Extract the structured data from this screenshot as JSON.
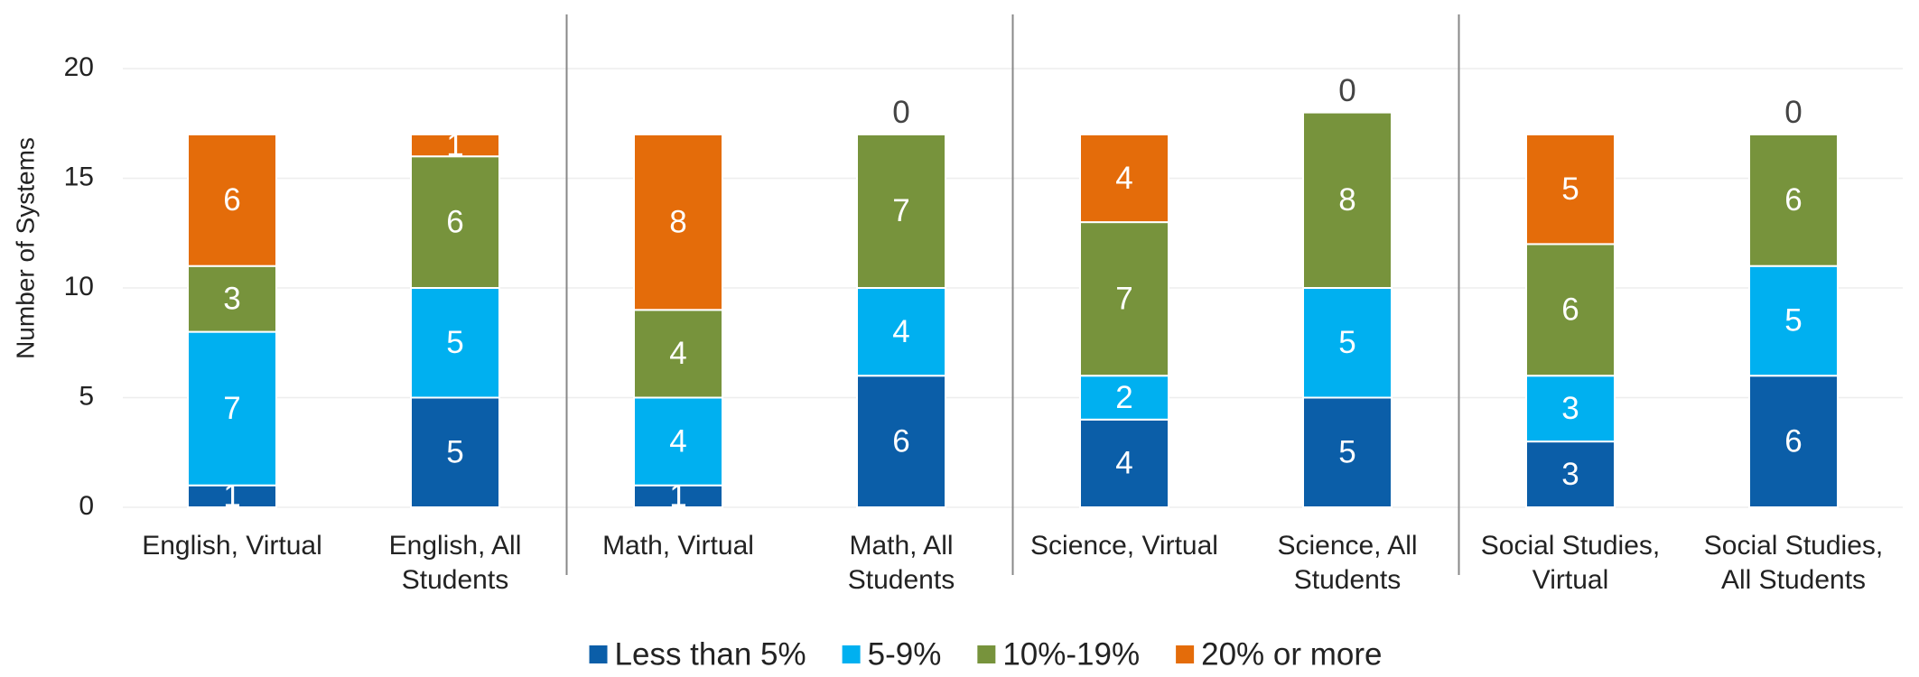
{
  "chart_data": {
    "type": "stacked_bar",
    "y_label": "Number of Systems",
    "categories": [
      "English, Virtual",
      "English, All Students",
      "Math, Virtual",
      "Math, All Students",
      "Science, Virtual",
      "Science, All Students",
      "Social Studies, Virtual",
      "Social Studies, All Students"
    ],
    "series": [
      {
        "name": "Less than 5%",
        "color": "#0b5ea8",
        "values": [
          1,
          5,
          1,
          6,
          4,
          5,
          3,
          6
        ]
      },
      {
        "name": "5-9%",
        "color": "#00b0f0",
        "values": [
          7,
          5,
          4,
          4,
          2,
          5,
          3,
          5
        ]
      },
      {
        "name": "10%-19%",
        "color": "#77933c",
        "values": [
          3,
          6,
          4,
          7,
          7,
          8,
          6,
          6
        ]
      },
      {
        "name": "20% or more",
        "color": "#e46c0a",
        "values": [
          6,
          1,
          8,
          0,
          4,
          0,
          5,
          0
        ]
      }
    ],
    "ylim": [
      0,
      20
    ],
    "yticks": [
      0,
      5,
      10,
      15,
      20
    ],
    "grid": true,
    "legend": "bottom"
  }
}
